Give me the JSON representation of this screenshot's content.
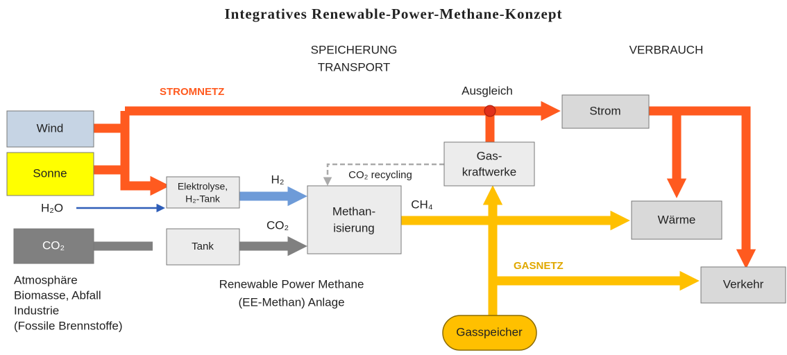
{
  "title": "Integratives Renewable-Power-Methane-Konzept",
  "headers": {
    "storage": [
      "SPEICHERUNG",
      "TRANSPORT"
    ],
    "consumption": "VERBRAUCH"
  },
  "networks": {
    "power": "STROMNETZ",
    "gas": "GASNETZ",
    "balance": "Ausgleich"
  },
  "nodes": {
    "wind": "Wind",
    "sun": "Sonne",
    "electrolysis": [
      "Elektrolyse,",
      "H₂-Tank"
    ],
    "co2_source": "CO₂",
    "tank": "Tank",
    "methanation": [
      "Methan-",
      "isierung"
    ],
    "gas_plant": [
      "Gas-",
      "kraftwerke"
    ],
    "power": "Strom",
    "heat": "Wärme",
    "transport": "Verkehr",
    "gas_storage": "Gasspeicher"
  },
  "flows": {
    "h2": "H₂",
    "h2o": "H₂O",
    "co2": "CO₂",
    "ch4": "CH₄",
    "recycling": "CO₂ recycling"
  },
  "co2_sources": [
    "Atmosphäre",
    "Biomasse, Abfall",
    "Industrie",
    "(Fossile Brennstoffe)"
  ],
  "plant_caption": [
    "Renewable Power Methane",
    "(EE-Methan) Anlage"
  ]
}
